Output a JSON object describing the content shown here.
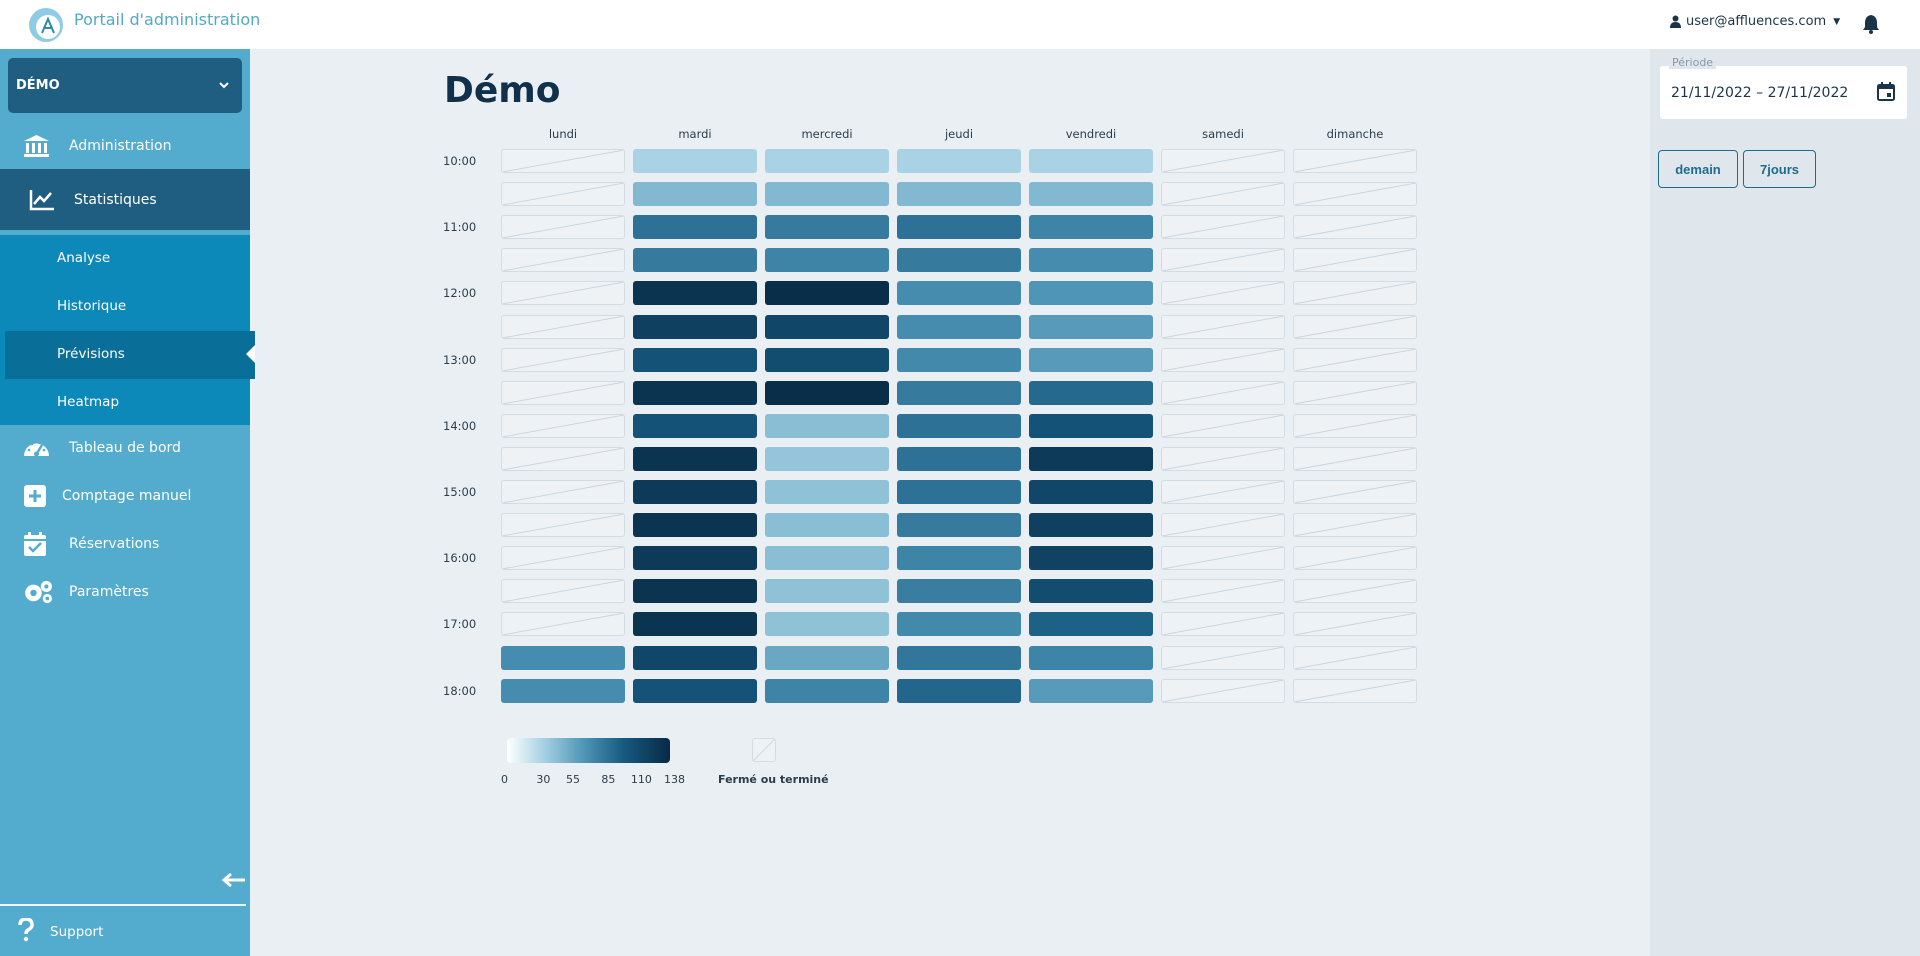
{
  "header": {
    "app_title": "Portail d'administration",
    "user_email": "user@affluences.com"
  },
  "sidebar": {
    "site_name": "DÉMO",
    "items": [
      {
        "label": "Administration",
        "icon": "bank-icon"
      },
      {
        "label": "Statistiques",
        "icon": "chart-line-icon"
      },
      {
        "label": "Tableau de bord",
        "icon": "gauge-icon"
      },
      {
        "label": "Comptage manuel",
        "icon": "plus-square-icon"
      },
      {
        "label": "Réservations",
        "icon": "calendar-check-icon"
      },
      {
        "label": "Paramètres",
        "icon": "gears-icon"
      }
    ],
    "sub_items": [
      {
        "label": "Analyse"
      },
      {
        "label": "Historique"
      },
      {
        "label": "Prévisions",
        "active": true
      },
      {
        "label": "Heatmap"
      }
    ],
    "support_label": "Support"
  },
  "main": {
    "title": "Démo"
  },
  "right_panel": {
    "period_label": "Période",
    "period_value": "21/11/2022 – 27/11/2022",
    "buttons": [
      "demain",
      "7jours"
    ]
  },
  "chart_data": {
    "type": "heatmap",
    "days": [
      "lundi",
      "mardi",
      "mercredi",
      "jeudi",
      "vendredi",
      "samedi",
      "dimanche"
    ],
    "time_labels": [
      "10:00",
      "11:00",
      "12:00",
      "13:00",
      "14:00",
      "15:00",
      "16:00",
      "17:00",
      "18:00"
    ],
    "slots": [
      "10:00",
      "10:30",
      "11:00",
      "11:30",
      "12:00",
      "12:30",
      "13:00",
      "13:30",
      "14:00",
      "14:30",
      "15:00",
      "15:30",
      "16:00",
      "16:30",
      "17:00",
      "17:30",
      "18:00"
    ],
    "values": [
      [
        null,
        30,
        30,
        30,
        30,
        null,
        null
      ],
      [
        null,
        45,
        45,
        45,
        45,
        null,
        null
      ],
      [
        null,
        85,
        80,
        85,
        75,
        null,
        null
      ],
      [
        null,
        80,
        75,
        80,
        70,
        null,
        null
      ],
      [
        null,
        130,
        135,
        70,
        65,
        null,
        null
      ],
      [
        null,
        120,
        115,
        70,
        62,
        null,
        null
      ],
      [
        null,
        105,
        110,
        72,
        62,
        null,
        null
      ],
      [
        null,
        130,
        135,
        80,
        90,
        null,
        null
      ],
      [
        null,
        105,
        42,
        85,
        105,
        null,
        null
      ],
      [
        null,
        130,
        38,
        85,
        125,
        null,
        null
      ],
      [
        null,
        125,
        40,
        85,
        115,
        null,
        null
      ],
      [
        null,
        130,
        42,
        80,
        120,
        null,
        null
      ],
      [
        null,
        125,
        42,
        75,
        118,
        null,
        null
      ],
      [
        null,
        130,
        40,
        78,
        110,
        null,
        null
      ],
      [
        null,
        130,
        40,
        72,
        95,
        null,
        null
      ],
      [
        70,
        115,
        55,
        82,
        75,
        null,
        null
      ],
      [
        70,
        105,
        75,
        92,
        62,
        null,
        null
      ]
    ],
    "scale": {
      "min": 0,
      "max": 138,
      "ticks": [
        0,
        30,
        55,
        85,
        110,
        138
      ]
    },
    "closed_label": "Fermé ou terminé",
    "colors": [
      "#ffffff",
      "#a8d2e4",
      "#4c93b4",
      "#16597f",
      "#082a45"
    ]
  }
}
